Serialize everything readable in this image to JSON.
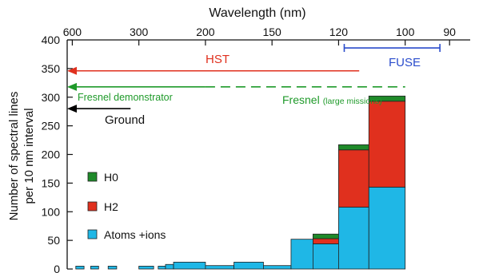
{
  "chart_data": {
    "type": "bar",
    "top_axis_label": "Wavelength (nm)",
    "ylabel": "Number of spectral lines\nper 10 nm interval",
    "ylim": [
      0,
      400
    ],
    "y_ticks": [
      0,
      50,
      100,
      150,
      200,
      250,
      300,
      350,
      400
    ],
    "x_scale": "reciprocal",
    "wavelength_ticks": [
      600,
      300,
      200,
      150,
      120,
      100,
      90
    ],
    "xlim_wavelength_nm": [
      650,
      86
    ],
    "series": [
      {
        "name": "Atoms +ions",
        "color": "#1fb7e6"
      },
      {
        "name": "H2",
        "color": "#e0301e"
      },
      {
        "name": "H0",
        "color": "#1f8a2a"
      }
    ],
    "bins": [
      {
        "wl_max": 570,
        "wl_min": 510,
        "atoms_ions": 5,
        "h2": 0,
        "h0": 0
      },
      {
        "wl_max": 470,
        "wl_min": 430,
        "atoms_ions": 5,
        "h2": 0,
        "h0": 0
      },
      {
        "wl_max": 390,
        "wl_min": 360,
        "atoms_ions": 5,
        "h2": 0,
        "h0": 0
      },
      {
        "wl_max": 300,
        "wl_min": 270,
        "atoms_ions": 5,
        "h2": 0,
        "h0": 0
      },
      {
        "wl_max": 262,
        "wl_min": 250,
        "atoms_ions": 5,
        "h2": 0,
        "h0": 0
      },
      {
        "wl_max": 250,
        "wl_min": 238,
        "atoms_ions": 8,
        "h2": 0,
        "h0": 0
      },
      {
        "wl_max": 238,
        "wl_min": 200,
        "atoms_ions": 12,
        "h2": 0,
        "h0": 0
      },
      {
        "wl_max": 200,
        "wl_min": 175,
        "atoms_ions": 6,
        "h2": 0,
        "h0": 0
      },
      {
        "wl_max": 175,
        "wl_min": 155,
        "atoms_ions": 12,
        "h2": 0,
        "h0": 0
      },
      {
        "wl_max": 155,
        "wl_min": 140,
        "atoms_ions": 6,
        "h2": 0,
        "h0": 0
      },
      {
        "wl_max": 140,
        "wl_min": 130,
        "atoms_ions": 52,
        "h2": 0,
        "h0": 0
      },
      {
        "wl_max": 130,
        "wl_min": 120,
        "atoms_ions": 44,
        "h2": 9,
        "h0": 8
      },
      {
        "wl_max": 120,
        "wl_min": 110,
        "atoms_ions": 108,
        "h2": 100,
        "h0": 9
      },
      {
        "wl_max": 110,
        "wl_min": 100,
        "atoms_ions": 143,
        "h2": 150,
        "h0": 9
      },
      {
        "wl_max": 100,
        "wl_min": 94,
        "atoms_ions": 0,
        "h2": 0,
        "h0": 0
      }
    ],
    "missions": [
      {
        "label": "HST",
        "wl_from": 113,
        "wl_to": 650,
        "y": 346,
        "color": "#e0301e",
        "style": "arrow"
      },
      {
        "label": "Fresnel demonstrator",
        "wl_from": 200,
        "wl_to": 650,
        "y": 318,
        "color": "#1f9a2a",
        "style": "arrow"
      },
      {
        "label": "Fresnel",
        "sub_label": "(large missions)",
        "wl_from": 100,
        "wl_to": 200,
        "y": 318,
        "color": "#1f9a2a",
        "style": "dashed"
      },
      {
        "label": "Ground",
        "wl_from": 320,
        "wl_to": 650,
        "y": 280,
        "color": "#000000",
        "style": "arrow"
      },
      {
        "label": "FUSE",
        "wl_from": 92,
        "wl_to": 118,
        "y": 386,
        "color": "#2a4ccc",
        "style": "bracket"
      }
    ],
    "legend_position": "left-middle",
    "grid": false
  }
}
